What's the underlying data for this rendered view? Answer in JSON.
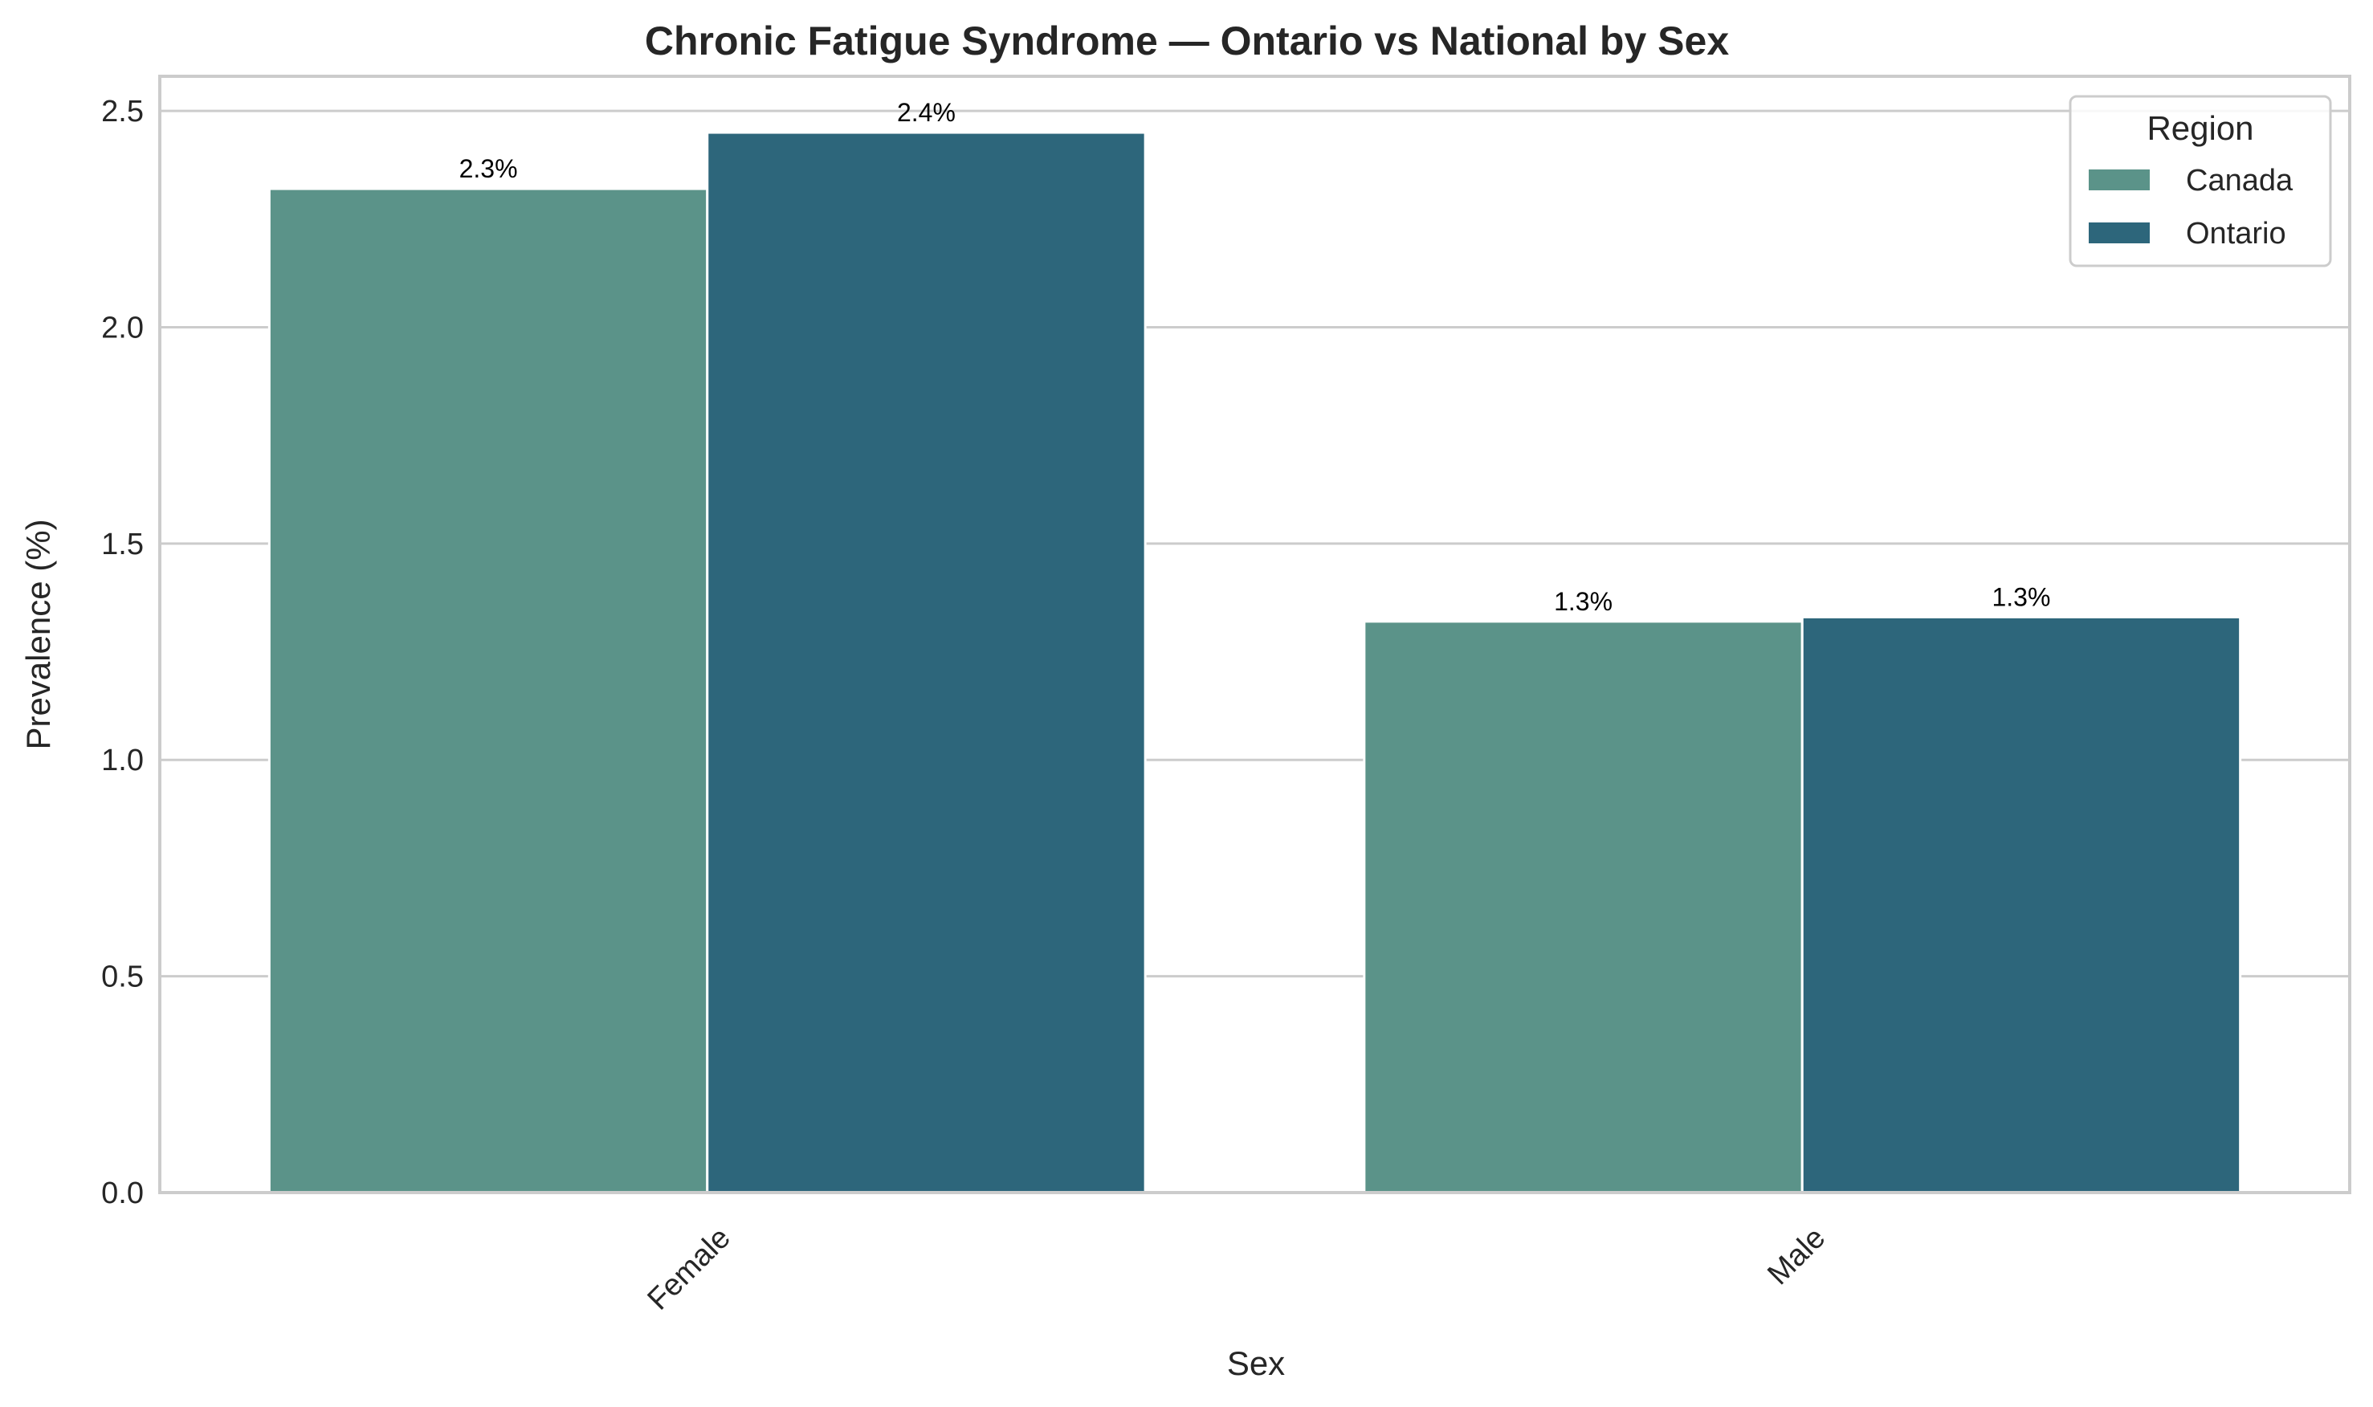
{
  "chart_data": {
    "type": "bar",
    "title": "Chronic Fatigue Syndrome — Ontario vs National by Sex",
    "xlabel": "Sex",
    "ylabel": "Prevalence (%)",
    "categories": [
      "Female",
      "Male"
    ],
    "series": [
      {
        "name": "Canada",
        "values": [
          2.32,
          1.32
        ],
        "labels": [
          "2.3%",
          "1.3%"
        ],
        "color": "#5b9389"
      },
      {
        "name": "Ontario",
        "values": [
          2.45,
          1.33
        ],
        "labels": [
          "2.4%",
          "1.3%"
        ],
        "color": "#2d667b"
      }
    ],
    "ylim": [
      0,
      2.58
    ],
    "yticks": [
      0.0,
      0.5,
      1.0,
      1.5,
      2.0,
      2.5
    ],
    "ytick_labels": [
      "0.0",
      "0.5",
      "1.0",
      "1.5",
      "2.0",
      "2.5"
    ],
    "grid": true,
    "legend": {
      "title": "Region",
      "position": "top-right"
    }
  }
}
